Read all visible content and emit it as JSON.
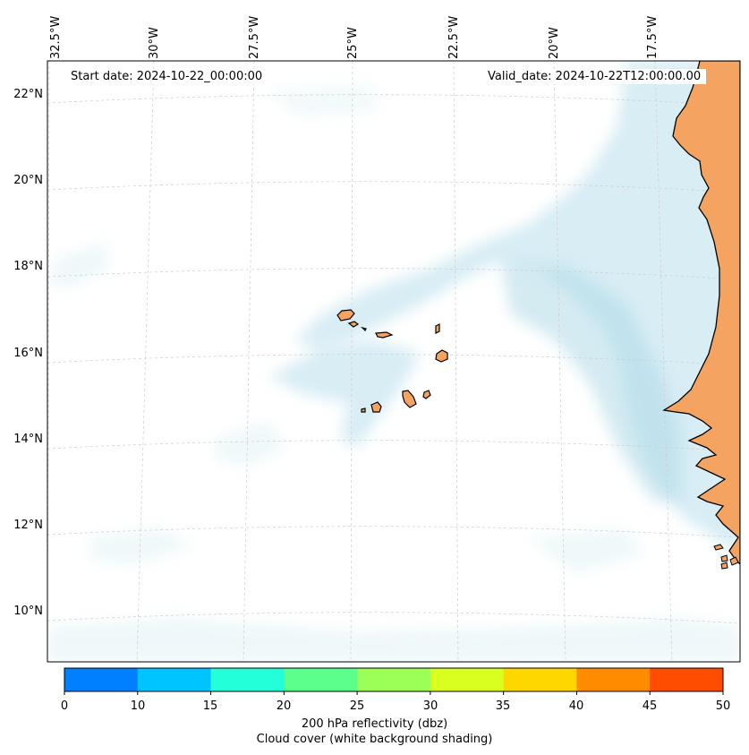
{
  "map": {
    "start_date": "Start date: 2024-10-22_00:00:00",
    "valid_date": "Valid_date: 2024-10-22T12:00:00.00",
    "lon_labels": [
      "32.5°W",
      "30°W",
      "27.5°W",
      "25°W",
      "22.5°W",
      "20°W",
      "17.5°W"
    ],
    "lat_labels": [
      "22°N",
      "20°N",
      "18°N",
      "16°N",
      "14°N",
      "12°N",
      "10°N"
    ],
    "land_color": "#f4a460",
    "cloud_color": "#a9d8e6",
    "region": "Cape Verde Islands and West African coast (Senegal, Gambia, Guinea-Bissau)"
  },
  "colorbar": {
    "ticks": [
      "0",
      "10",
      "15",
      "20",
      "25",
      "30",
      "35",
      "40",
      "45",
      "50"
    ],
    "colors": [
      "#0080ff",
      "#00c4ff",
      "#22ffd9",
      "#5dff8c",
      "#9cff55",
      "#d8ff20",
      "#ffd700",
      "#ff8c00",
      "#ff4d00"
    ],
    "label": "200 hPa reflectivity (dbz)",
    "sublabel": "Cloud cover (white background shading)"
  }
}
